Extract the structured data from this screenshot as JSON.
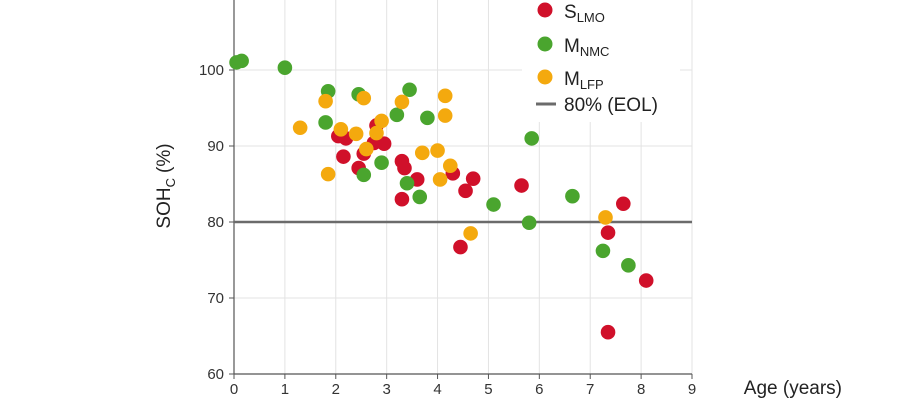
{
  "chart_data": {
    "type": "scatter",
    "xlabel": "Age (years)",
    "ylabel": {
      "main": "SOH",
      "sub": "C",
      "unit": "(%)"
    },
    "xlim": [
      0,
      9
    ],
    "ylim": [
      60,
      110
    ],
    "xticks": [
      0,
      1,
      2,
      3,
      4,
      5,
      6,
      7,
      8,
      9
    ],
    "yticks": [
      60,
      70,
      80,
      90,
      100
    ],
    "grid": true,
    "legend_position": "top-right",
    "reference_line": {
      "y": 80,
      "label": "80% (EOL)",
      "color": "#6b6b6b"
    },
    "series": [
      {
        "name": "S",
        "subscript": "LMO",
        "color": "#d0102a",
        "points": [
          [
            2.05,
            91.3
          ],
          [
            2.2,
            91.0
          ],
          [
            2.15,
            88.6
          ],
          [
            2.45,
            87.1
          ],
          [
            2.55,
            89.0
          ],
          [
            2.75,
            90.4
          ],
          [
            2.8,
            92.7
          ],
          [
            2.95,
            90.3
          ],
          [
            3.3,
            88.0
          ],
          [
            3.35,
            87.1
          ],
          [
            3.3,
            83.0
          ],
          [
            3.6,
            85.6
          ],
          [
            4.3,
            86.4
          ],
          [
            4.55,
            84.1
          ],
          [
            4.7,
            85.7
          ],
          [
            4.45,
            76.7
          ],
          [
            5.65,
            84.8
          ],
          [
            7.35,
            78.6
          ],
          [
            7.65,
            82.4
          ],
          [
            8.1,
            72.3
          ],
          [
            7.35,
            65.5
          ]
        ]
      },
      {
        "name": "M",
        "subscript": "NMC",
        "color": "#4aa52e",
        "points": [
          [
            0.05,
            101.0
          ],
          [
            0.15,
            101.2
          ],
          [
            1.0,
            100.3
          ],
          [
            1.8,
            93.1
          ],
          [
            1.85,
            97.2
          ],
          [
            2.45,
            96.8
          ],
          [
            2.55,
            86.2
          ],
          [
            2.9,
            87.8
          ],
          [
            3.2,
            94.1
          ],
          [
            3.4,
            85.1
          ],
          [
            3.45,
            97.4
          ],
          [
            3.65,
            83.3
          ],
          [
            3.8,
            93.7
          ],
          [
            5.1,
            82.3
          ],
          [
            5.8,
            79.9
          ],
          [
            5.85,
            91.0
          ],
          [
            6.65,
            83.4
          ],
          [
            7.25,
            76.2
          ],
          [
            7.75,
            74.3
          ]
        ]
      },
      {
        "name": "M",
        "subscript": "LFP",
        "color": "#f4a90e",
        "points": [
          [
            1.3,
            92.4
          ],
          [
            1.8,
            95.9
          ],
          [
            1.85,
            86.3
          ],
          [
            2.1,
            92.2
          ],
          [
            2.4,
            91.6
          ],
          [
            2.55,
            96.3
          ],
          [
            2.6,
            89.6
          ],
          [
            2.8,
            91.7
          ],
          [
            2.9,
            93.3
          ],
          [
            3.3,
            95.8
          ],
          [
            3.7,
            89.1
          ],
          [
            4.0,
            89.4
          ],
          [
            4.05,
            85.6
          ],
          [
            4.15,
            94.0
          ],
          [
            4.15,
            96.6
          ],
          [
            4.25,
            87.4
          ],
          [
            4.65,
            78.5
          ],
          [
            7.3,
            80.6
          ]
        ]
      }
    ]
  }
}
